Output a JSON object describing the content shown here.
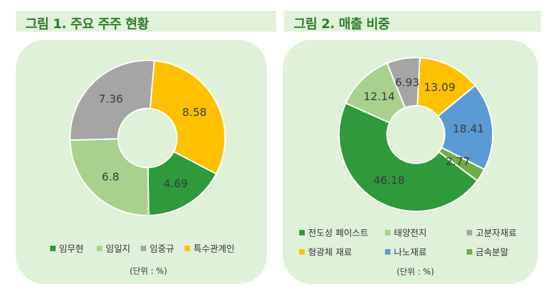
{
  "chart_data": [
    {
      "type": "pie",
      "title": "그림 1. 주요 주주 현황",
      "categories": [
        "임무현",
        "임일지",
        "임중규",
        "특수관계인"
      ],
      "values": [
        4.69,
        6.8,
        7.36,
        8.58
      ],
      "labels": [
        "4.69",
        "6.8",
        "7.36",
        "8.58"
      ],
      "colors": [
        "#2e9a3c",
        "#a9d18e",
        "#a5a5a5",
        "#ffc000"
      ],
      "donut": true,
      "legend": "bottom",
      "unit_note": "(단위 : %)"
    },
    {
      "type": "pie",
      "title": "그림 2. 매출 비중",
      "categories": [
        "전도성 페이스트",
        "태양전지",
        "고분자재료",
        "형광체 재료",
        "나노재료",
        "금속분말"
      ],
      "values": [
        46.18,
        12.14,
        6.93,
        13.09,
        18.41,
        2.77
      ],
      "labels": [
        "46.18",
        "12.14",
        "6.93",
        "13.09",
        "18.41",
        "2.77"
      ],
      "colors": [
        "#2e9a3c",
        "#a9d18e",
        "#a5a5a5",
        "#ffc000",
        "#5b9bd5",
        "#70ad47"
      ],
      "donut": true,
      "legend": "bottom",
      "unit_note": "(단위 : %)"
    }
  ]
}
